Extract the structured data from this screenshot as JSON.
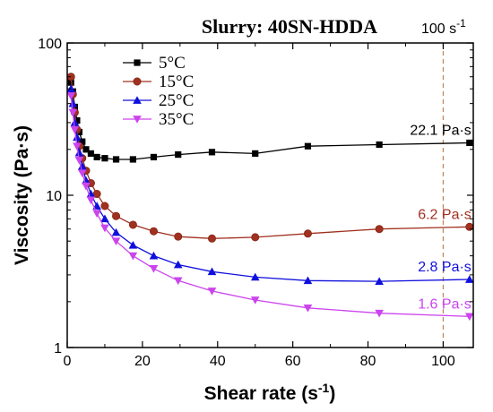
{
  "chart_data": {
    "type": "line",
    "title": "Slurry: 40SN-HDDA",
    "xlabel": "Shear rate (s",
    "xlabel_sup": "-1",
    "xlabel_close": ")",
    "ylabel": "Viscosity (Pa·s)",
    "xlim": [
      0,
      108
    ],
    "ylim": [
      1,
      100
    ],
    "y_scale": "log",
    "x_ticks": [
      0,
      20,
      40,
      60,
      80,
      100
    ],
    "x_tick_labels": [
      "0",
      "20",
      "40",
      "60",
      "80",
      "100"
    ],
    "y_ticks": [
      1,
      10,
      100
    ],
    "y_tick_labels": [
      "1",
      "10",
      "100"
    ],
    "grid": false,
    "legend_position": "top-left",
    "reference_line": {
      "x": 100,
      "label": "100 s",
      "label_sup": "-1",
      "color": "#c0845a"
    },
    "series": [
      {
        "name": "5°C",
        "color": "#000000",
        "marker": "square",
        "x": [
          1.0,
          1.5,
          2.0,
          2.6,
          3.2,
          4.0,
          5.0,
          6.3,
          7.9,
          10,
          13,
          17.5,
          23,
          29.5,
          38.5,
          50,
          64,
          83,
          107
        ],
        "y": [
          55,
          48,
          38,
          31,
          26,
          22.5,
          20,
          18.8,
          17.8,
          17.5,
          17.2,
          17.2,
          17.8,
          18.5,
          19.2,
          18.8,
          21,
          21.5,
          22.1
        ],
        "end_label": "22.1 Pa·s"
      },
      {
        "name": "15°C",
        "color": "#a0301f",
        "marker": "circle",
        "x": [
          1.0,
          1.5,
          2.0,
          2.6,
          3.2,
          4.0,
          5.0,
          6.3,
          7.9,
          10,
          13,
          17.5,
          23,
          29.5,
          38.5,
          50,
          64,
          83,
          107
        ],
        "y": [
          60,
          46,
          35,
          27,
          21,
          17.5,
          14.5,
          12,
          10.2,
          8.5,
          7.3,
          6.4,
          5.8,
          5.35,
          5.2,
          5.3,
          5.6,
          6.0,
          6.2
        ],
        "end_label": "6.2 Pa·s"
      },
      {
        "name": "25°C",
        "color": "#1010dd",
        "marker": "triangle-up",
        "x": [
          1.0,
          1.5,
          2.0,
          2.6,
          3.2,
          4.0,
          5.0,
          6.3,
          7.9,
          10,
          13,
          17.5,
          23,
          29.5,
          38.5,
          50,
          64,
          83,
          107
        ],
        "y": [
          50,
          40,
          30,
          24,
          19,
          15.5,
          12.5,
          10.2,
          8.5,
          7.0,
          5.7,
          4.7,
          4.0,
          3.5,
          3.15,
          2.9,
          2.75,
          2.72,
          2.8
        ],
        "end_label": "2.8 Pa·s"
      },
      {
        "name": "35°C",
        "color": "#cc44ee",
        "marker": "triangle-down",
        "x": [
          1.0,
          1.5,
          2.0,
          2.6,
          3.2,
          4.0,
          5.0,
          6.3,
          7.9,
          10,
          13,
          17.5,
          23,
          29.5,
          38.5,
          50,
          64,
          83,
          107
        ],
        "y": [
          45,
          35,
          27,
          21,
          17,
          14,
          11.5,
          9.3,
          7.6,
          6.1,
          5.0,
          4.0,
          3.3,
          2.75,
          2.35,
          2.05,
          1.82,
          1.68,
          1.6
        ],
        "end_label": "1.6 Pa·s"
      }
    ]
  }
}
